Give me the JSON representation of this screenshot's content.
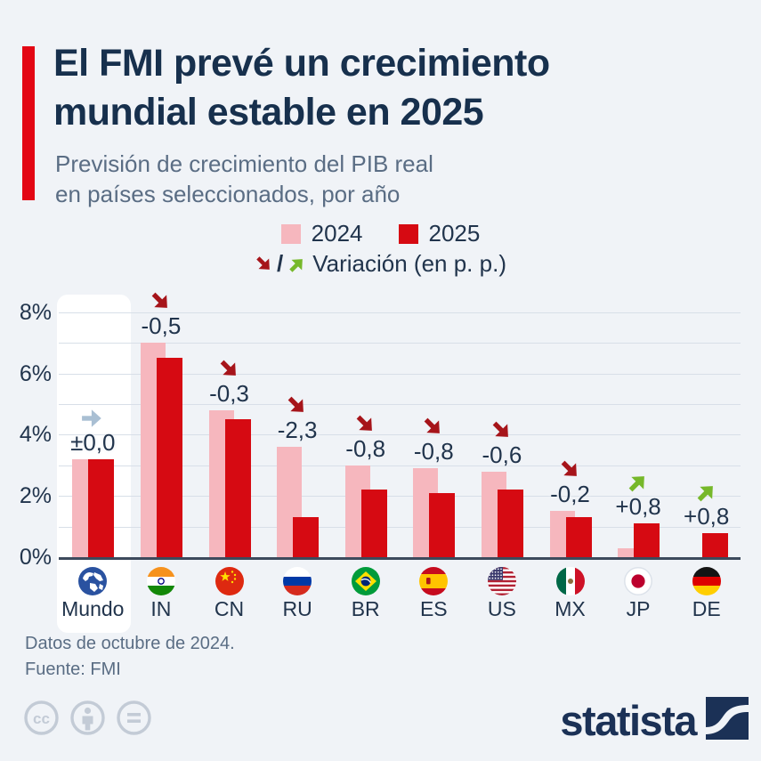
{
  "header": {
    "title": "El FMI prevé un crecimiento\nmundial estable en 2025",
    "subtitle": "Previsión de crecimiento del PIB real\nen países seleccionados, por año"
  },
  "legend": {
    "series": [
      {
        "label": "2024"
      },
      {
        "label": "2025"
      }
    ],
    "separator": "/",
    "variation_label": "Variación (en p. p.)"
  },
  "chart_data": {
    "type": "bar",
    "categories": [
      "Mundo",
      "IN",
      "CN",
      "RU",
      "BR",
      "ES",
      "US",
      "MX",
      "JP",
      "DE"
    ],
    "flags": [
      "world",
      "in",
      "cn",
      "ru",
      "br",
      "es",
      "us",
      "mx",
      "jp",
      "de"
    ],
    "series": [
      {
        "name": "2024",
        "color": "#f6b7be",
        "values": [
          3.2,
          7.0,
          4.8,
          3.6,
          3.0,
          2.9,
          2.8,
          1.5,
          0.3,
          0.0
        ]
      },
      {
        "name": "2025",
        "color": "#d60a12",
        "values": [
          3.2,
          6.5,
          4.5,
          1.3,
          2.2,
          2.1,
          2.2,
          1.3,
          1.1,
          0.8
        ]
      }
    ],
    "variations": [
      {
        "label": "±0,0",
        "dir": "flat"
      },
      {
        "label": "-0,5",
        "dir": "down"
      },
      {
        "label": "-0,3",
        "dir": "down"
      },
      {
        "label": "-2,3",
        "dir": "down"
      },
      {
        "label": "-0,8",
        "dir": "down"
      },
      {
        "label": "-0,8",
        "dir": "down"
      },
      {
        "label": "-0,6",
        "dir": "down"
      },
      {
        "label": "-0,2",
        "dir": "down"
      },
      {
        "label": "+0,8",
        "dir": "up"
      },
      {
        "label": "+0,8",
        "dir": "up"
      }
    ],
    "yticks": [
      "0%",
      "2%",
      "4%",
      "6%",
      "8%"
    ],
    "ylim": [
      0,
      8
    ],
    "grid": true,
    "highlight_category": "Mundo",
    "legend_position": "top"
  },
  "footer": {
    "note": "Datos de octubre de 2024.",
    "source": "Fuente: FMI"
  },
  "branding": {
    "wordmark": "statista"
  },
  "colors": {
    "accent": "#e30613",
    "title_navy": "#17304d",
    "navy": "#21344c",
    "muted_blue": "#5a6d84",
    "bar_2024": "#f6b7be",
    "bar_2025": "#d60a12",
    "arrow_down": "#a6141a",
    "arrow_up": "#76b82a",
    "arrow_flat": "#a9bfd3",
    "gridline": "#d8dfe8",
    "axis": "#3d4a5c",
    "logo_navy": "#1b3156",
    "cc_gray": "#c3cbd6"
  }
}
